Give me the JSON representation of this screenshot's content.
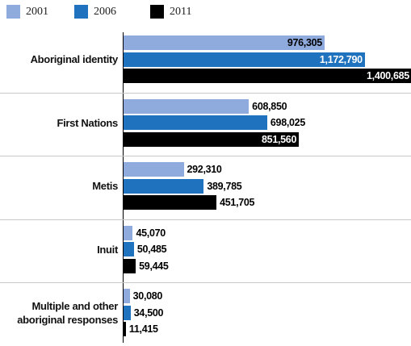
{
  "chart_data": {
    "type": "bar",
    "orientation": "horizontal",
    "categories": [
      "Aboriginal identity",
      "First Nations",
      "Metis",
      "Inuit",
      "Multiple and other aboriginal responses"
    ],
    "series": [
      {
        "name": "2001",
        "color": "#8faadc",
        "values": [
          976305,
          608850,
          292310,
          45070,
          30080
        ],
        "value_labels": [
          "976,305",
          "608,850",
          "292,310",
          "45,070",
          "30,080"
        ]
      },
      {
        "name": "2006",
        "color": "#1f72bd",
        "values": [
          1172790,
          698025,
          389785,
          50485,
          34500
        ],
        "value_labels": [
          "1,172,790",
          "698,025",
          "389,785",
          "50,485",
          "34,500"
        ]
      },
      {
        "name": "2011",
        "color": "#000000",
        "values": [
          1400685,
          851560,
          451705,
          59445,
          11415
        ],
        "value_labels": [
          "1,400,685",
          "851,560",
          "451,705",
          "59,445",
          "11,415"
        ]
      }
    ]
  }
}
